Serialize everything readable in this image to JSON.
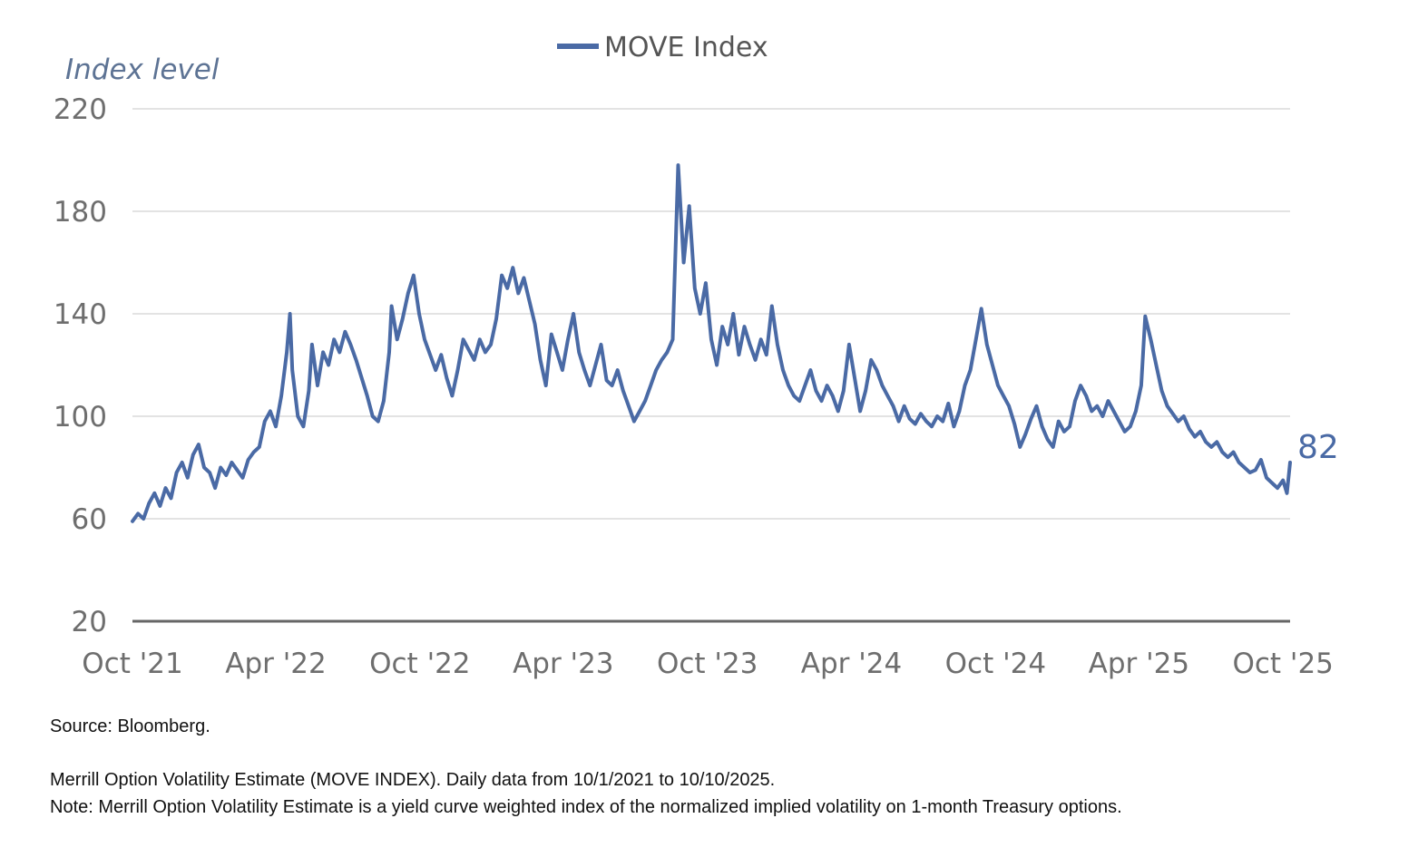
{
  "chart_data": {
    "type": "line",
    "title": "",
    "ylabel": "Index level",
    "xlabel": "",
    "ylim": [
      20,
      220
    ],
    "yticks": [
      20,
      60,
      100,
      140,
      180,
      220
    ],
    "xlim": [
      "2021-10-01",
      "2025-10-10"
    ],
    "xticks": [
      {
        "label": "Oct '21",
        "date": "2021-10-01"
      },
      {
        "label": "Apr '22",
        "date": "2022-04-01"
      },
      {
        "label": "Oct '22",
        "date": "2022-10-01"
      },
      {
        "label": "Apr '23",
        "date": "2023-04-01"
      },
      {
        "label": "Oct '23",
        "date": "2023-10-01"
      },
      {
        "label": "Apr '24",
        "date": "2024-04-01"
      },
      {
        "label": "Oct '24",
        "date": "2024-10-01"
      },
      {
        "label": "Apr '25",
        "date": "2025-04-01"
      },
      {
        "label": "Oct '25",
        "date": "2025-10-01"
      }
    ],
    "grid": true,
    "legend_position": "top-center",
    "end_label": "82",
    "series": [
      {
        "name": "MOVE Index",
        "color": "#4a6aa5",
        "points": [
          [
            "2021-10-01",
            59
          ],
          [
            "2021-10-08",
            62
          ],
          [
            "2021-10-15",
            60
          ],
          [
            "2021-10-22",
            66
          ],
          [
            "2021-10-29",
            70
          ],
          [
            "2021-11-05",
            65
          ],
          [
            "2021-11-12",
            72
          ],
          [
            "2021-11-19",
            68
          ],
          [
            "2021-11-26",
            78
          ],
          [
            "2021-12-03",
            82
          ],
          [
            "2021-12-10",
            76
          ],
          [
            "2021-12-17",
            85
          ],
          [
            "2021-12-24",
            89
          ],
          [
            "2021-12-31",
            80
          ],
          [
            "2022-01-07",
            78
          ],
          [
            "2022-01-14",
            72
          ],
          [
            "2022-01-21",
            80
          ],
          [
            "2022-01-28",
            77
          ],
          [
            "2022-02-04",
            82
          ],
          [
            "2022-02-11",
            79
          ],
          [
            "2022-02-18",
            76
          ],
          [
            "2022-02-25",
            83
          ],
          [
            "2022-03-04",
            86
          ],
          [
            "2022-03-11",
            88
          ],
          [
            "2022-03-18",
            98
          ],
          [
            "2022-03-25",
            102
          ],
          [
            "2022-04-01",
            96
          ],
          [
            "2022-04-08",
            108
          ],
          [
            "2022-04-15",
            125
          ],
          [
            "2022-04-19",
            140
          ],
          [
            "2022-04-22",
            118
          ],
          [
            "2022-04-29",
            100
          ],
          [
            "2022-05-06",
            96
          ],
          [
            "2022-05-13",
            110
          ],
          [
            "2022-05-17",
            128
          ],
          [
            "2022-05-24",
            112
          ],
          [
            "2022-05-31",
            125
          ],
          [
            "2022-06-07",
            120
          ],
          [
            "2022-06-14",
            130
          ],
          [
            "2022-06-21",
            125
          ],
          [
            "2022-06-28",
            133
          ],
          [
            "2022-07-05",
            128
          ],
          [
            "2022-07-12",
            122
          ],
          [
            "2022-07-19",
            115
          ],
          [
            "2022-07-26",
            108
          ],
          [
            "2022-08-02",
            100
          ],
          [
            "2022-08-09",
            98
          ],
          [
            "2022-08-16",
            106
          ],
          [
            "2022-08-23",
            125
          ],
          [
            "2022-08-26",
            143
          ],
          [
            "2022-09-02",
            130
          ],
          [
            "2022-09-09",
            138
          ],
          [
            "2022-09-16",
            148
          ],
          [
            "2022-09-23",
            155
          ],
          [
            "2022-09-30",
            140
          ],
          [
            "2022-10-07",
            130
          ],
          [
            "2022-10-14",
            124
          ],
          [
            "2022-10-21",
            118
          ],
          [
            "2022-10-28",
            124
          ],
          [
            "2022-11-04",
            115
          ],
          [
            "2022-11-11",
            108
          ],
          [
            "2022-11-18",
            118
          ],
          [
            "2022-11-25",
            130
          ],
          [
            "2022-12-02",
            126
          ],
          [
            "2022-12-09",
            122
          ],
          [
            "2022-12-16",
            130
          ],
          [
            "2022-12-23",
            125
          ],
          [
            "2022-12-30",
            128
          ],
          [
            "2023-01-06",
            138
          ],
          [
            "2023-01-13",
            155
          ],
          [
            "2023-01-20",
            150
          ],
          [
            "2023-01-27",
            158
          ],
          [
            "2023-02-03",
            148
          ],
          [
            "2023-02-10",
            154
          ],
          [
            "2023-02-17",
            145
          ],
          [
            "2023-02-24",
            136
          ],
          [
            "2023-03-03",
            122
          ],
          [
            "2023-03-10",
            112
          ],
          [
            "2023-03-17",
            132
          ],
          [
            "2023-03-24",
            125
          ],
          [
            "2023-03-31",
            118
          ],
          [
            "2023-04-07",
            130
          ],
          [
            "2023-04-14",
            140
          ],
          [
            "2023-04-21",
            125
          ],
          [
            "2023-04-28",
            118
          ],
          [
            "2023-05-05",
            112
          ],
          [
            "2023-05-12",
            120
          ],
          [
            "2023-05-19",
            128
          ],
          [
            "2023-05-26",
            114
          ],
          [
            "2023-06-02",
            112
          ],
          [
            "2023-06-09",
            118
          ],
          [
            "2023-06-16",
            110
          ],
          [
            "2023-06-23",
            104
          ],
          [
            "2023-06-30",
            98
          ],
          [
            "2023-07-07",
            102
          ],
          [
            "2023-07-14",
            106
          ],
          [
            "2023-07-21",
            112
          ],
          [
            "2023-07-28",
            118
          ],
          [
            "2023-08-04",
            122
          ],
          [
            "2023-08-11",
            125
          ],
          [
            "2023-08-18",
            130
          ],
          [
            "2023-08-25",
            198
          ],
          [
            "2023-09-01",
            160
          ],
          [
            "2023-09-08",
            182
          ],
          [
            "2023-09-15",
            150
          ],
          [
            "2023-09-22",
            140
          ],
          [
            "2023-09-29",
            152
          ],
          [
            "2023-10-06",
            130
          ],
          [
            "2023-10-13",
            120
          ],
          [
            "2023-10-20",
            135
          ],
          [
            "2023-10-27",
            128
          ],
          [
            "2023-11-03",
            140
          ],
          [
            "2023-11-10",
            124
          ],
          [
            "2023-11-17",
            135
          ],
          [
            "2023-11-24",
            128
          ],
          [
            "2023-12-01",
            122
          ],
          [
            "2023-12-08",
            130
          ],
          [
            "2023-12-15",
            124
          ],
          [
            "2023-12-22",
            143
          ],
          [
            "2023-12-29",
            128
          ],
          [
            "2024-01-05",
            118
          ],
          [
            "2024-01-12",
            112
          ],
          [
            "2024-01-19",
            108
          ],
          [
            "2024-01-26",
            106
          ],
          [
            "2024-02-02",
            112
          ],
          [
            "2024-02-09",
            118
          ],
          [
            "2024-02-16",
            110
          ],
          [
            "2024-02-23",
            106
          ],
          [
            "2024-03-01",
            112
          ],
          [
            "2024-03-08",
            108
          ],
          [
            "2024-03-15",
            102
          ],
          [
            "2024-03-22",
            110
          ],
          [
            "2024-03-29",
            128
          ],
          [
            "2024-04-05",
            115
          ],
          [
            "2024-04-12",
            102
          ],
          [
            "2024-04-19",
            110
          ],
          [
            "2024-04-26",
            122
          ],
          [
            "2024-05-03",
            118
          ],
          [
            "2024-05-10",
            112
          ],
          [
            "2024-05-17",
            108
          ],
          [
            "2024-05-24",
            104
          ],
          [
            "2024-05-31",
            98
          ],
          [
            "2024-06-07",
            104
          ],
          [
            "2024-06-14",
            99
          ],
          [
            "2024-06-21",
            97
          ],
          [
            "2024-06-28",
            101
          ],
          [
            "2024-07-05",
            98
          ],
          [
            "2024-07-12",
            96
          ],
          [
            "2024-07-19",
            100
          ],
          [
            "2024-07-26",
            98
          ],
          [
            "2024-08-02",
            105
          ],
          [
            "2024-08-09",
            96
          ],
          [
            "2024-08-16",
            102
          ],
          [
            "2024-08-23",
            112
          ],
          [
            "2024-08-30",
            118
          ],
          [
            "2024-09-06",
            130
          ],
          [
            "2024-09-13",
            142
          ],
          [
            "2024-09-20",
            128
          ],
          [
            "2024-09-27",
            120
          ],
          [
            "2024-10-04",
            112
          ],
          [
            "2024-10-11",
            108
          ],
          [
            "2024-10-18",
            104
          ],
          [
            "2024-10-25",
            97
          ],
          [
            "2024-11-01",
            88
          ],
          [
            "2024-11-08",
            93
          ],
          [
            "2024-11-15",
            99
          ],
          [
            "2024-11-22",
            104
          ],
          [
            "2024-11-29",
            96
          ],
          [
            "2024-12-06",
            91
          ],
          [
            "2024-12-13",
            88
          ],
          [
            "2024-12-20",
            98
          ],
          [
            "2024-12-27",
            94
          ],
          [
            "2025-01-03",
            96
          ],
          [
            "2025-01-10",
            106
          ],
          [
            "2025-01-17",
            112
          ],
          [
            "2025-01-24",
            108
          ],
          [
            "2025-01-31",
            102
          ],
          [
            "2025-02-07",
            104
          ],
          [
            "2025-02-14",
            100
          ],
          [
            "2025-02-21",
            106
          ],
          [
            "2025-02-28",
            102
          ],
          [
            "2025-03-07",
            98
          ],
          [
            "2025-03-14",
            94
          ],
          [
            "2025-03-21",
            96
          ],
          [
            "2025-03-28",
            102
          ],
          [
            "2025-04-04",
            112
          ],
          [
            "2025-04-09",
            139
          ],
          [
            "2025-04-16",
            130
          ],
          [
            "2025-04-23",
            120
          ],
          [
            "2025-04-30",
            110
          ],
          [
            "2025-05-07",
            104
          ],
          [
            "2025-05-14",
            101
          ],
          [
            "2025-05-21",
            98
          ],
          [
            "2025-05-28",
            100
          ],
          [
            "2025-06-04",
            95
          ],
          [
            "2025-06-11",
            92
          ],
          [
            "2025-06-18",
            94
          ],
          [
            "2025-06-25",
            90
          ],
          [
            "2025-07-02",
            88
          ],
          [
            "2025-07-09",
            90
          ],
          [
            "2025-07-16",
            86
          ],
          [
            "2025-07-23",
            84
          ],
          [
            "2025-07-30",
            86
          ],
          [
            "2025-08-06",
            82
          ],
          [
            "2025-08-13",
            80
          ],
          [
            "2025-08-20",
            78
          ],
          [
            "2025-08-27",
            79
          ],
          [
            "2025-09-03",
            83
          ],
          [
            "2025-09-10",
            76
          ],
          [
            "2025-09-17",
            74
          ],
          [
            "2025-09-24",
            72
          ],
          [
            "2025-10-01",
            75
          ],
          [
            "2025-10-06",
            70
          ],
          [
            "2025-10-10",
            82
          ]
        ]
      }
    ]
  },
  "notes": {
    "source": "Source: Bloomberg.",
    "description": "Merrill Option Volatility Estimate (MOVE INDEX). Daily data from 10/1/2021 to 10/10/2025.",
    "definition": "Note:  Merrill Option Volatility Estimate is a yield curve weighted index of the normalized implied volatility on 1-month Treasury options."
  }
}
